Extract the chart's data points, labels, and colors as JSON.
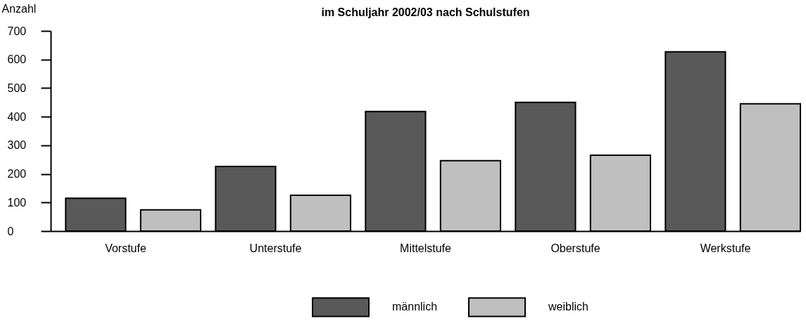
{
  "chart_data": {
    "type": "bar",
    "title": "im Schuljahr 2002/03 nach Schulstufen",
    "ylabel": "Anzahl",
    "categories": [
      "Vorstufe",
      "Unterstufe",
      "Mittelstufe",
      "Oberstufe",
      "Werkstufe"
    ],
    "series": [
      {
        "name": "männlich",
        "color": "#595959",
        "values": [
          115,
          226,
          418,
          450,
          627
        ]
      },
      {
        "name": "weiblich",
        "color": "#bfbfbf",
        "values": [
          74,
          125,
          246,
          265,
          445
        ]
      }
    ],
    "ylim": [
      0,
      700
    ],
    "yticks": [
      0,
      100,
      200,
      300,
      400,
      500,
      600,
      700
    ],
    "grid": false,
    "legend": "bottom"
  }
}
